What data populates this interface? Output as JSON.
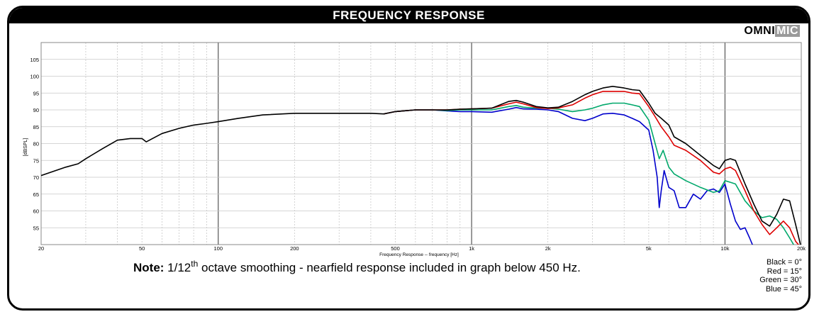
{
  "header": {
    "title": "FREQUENCY RESPONSE"
  },
  "logo": {
    "part1": "OMNI",
    "part2": "MIC"
  },
  "note": {
    "label": "Note:",
    "text_a": " 1/12",
    "sup": "th",
    "text_b": " octave smoothing - nearfield response included in graph below 450 Hz."
  },
  "legend": {
    "lines": [
      "Black = 0°",
      "Red = 15°",
      "Green = 30°",
      "Blue = 45°"
    ]
  },
  "chart_data": {
    "type": "line",
    "title": "FREQUENCY RESPONSE",
    "xlabel": "Frequency Response -- frequency [Hz]",
    "ylabel": "[dBSPL]",
    "xscale": "log",
    "xlim": [
      20,
      20000
    ],
    "ylim": [
      50,
      110
    ],
    "grid": true,
    "x_ticks": [
      {
        "v": 20,
        "label": "20"
      },
      {
        "v": 50,
        "label": "50"
      },
      {
        "v": 100,
        "label": "100"
      },
      {
        "v": 200,
        "label": "200"
      },
      {
        "v": 500,
        "label": "500"
      },
      {
        "v": 1000,
        "label": "1k"
      },
      {
        "v": 2000,
        "label": "2k"
      },
      {
        "v": 5000,
        "label": "5k"
      },
      {
        "v": 10000,
        "label": "10k"
      },
      {
        "v": 20000,
        "label": "20k"
      }
    ],
    "y_ticks": [
      55,
      60,
      65,
      70,
      75,
      80,
      85,
      90,
      95,
      100,
      105
    ],
    "series": [
      {
        "color": "#000000",
        "x": [
          20,
          25,
          28,
          30,
          35,
          40,
          45,
          50,
          52,
          55,
          60,
          70,
          80,
          90,
          100,
          120,
          150,
          200,
          300,
          400,
          450,
          500,
          600,
          700,
          800,
          900,
          1000,
          1200,
          1400,
          1500,
          1600,
          1800,
          2000,
          2200,
          2500,
          2800,
          3000,
          3300,
          3600,
          4000,
          4300,
          4600,
          5000,
          5300,
          5600,
          6000,
          6300,
          7000,
          8000,
          9000,
          9500,
          10000,
          10500,
          11000,
          12000,
          13000,
          14000,
          15000,
          16000,
          17000,
          18000,
          19000,
          20000
        ],
        "y": [
          70.5,
          73,
          74,
          75.5,
          78.5,
          81,
          81.5,
          81.5,
          80.5,
          81.5,
          83,
          84.5,
          85.5,
          86,
          86.5,
          87.5,
          88.5,
          89,
          89,
          89,
          88.8,
          89.5,
          90,
          90,
          90,
          90.2,
          90.3,
          90.5,
          92.5,
          92.8,
          92.3,
          91,
          90.6,
          90.8,
          92.5,
          94.5,
          95.5,
          96.5,
          97,
          96.5,
          96,
          95.8,
          92,
          89,
          87.5,
          85.5,
          82,
          80,
          76.5,
          73.5,
          72.5,
          75,
          75.5,
          75,
          68,
          62,
          57,
          55.5,
          59,
          63.5,
          63,
          56,
          49
        ]
      },
      {
        "color": "#dd0000",
        "x": [
          450,
          500,
          600,
          700,
          800,
          900,
          1000,
          1200,
          1400,
          1500,
          1600,
          1800,
          2000,
          2200,
          2500,
          2800,
          3000,
          3300,
          3600,
          4000,
          4300,
          4600,
          5000,
          5300,
          5600,
          6000,
          6300,
          7000,
          8000,
          9000,
          9500,
          10000,
          10500,
          11000,
          12000,
          13000,
          14000,
          15000,
          16000,
          17000,
          18000,
          19000,
          20000
        ],
        "y": [
          88.8,
          89.5,
          90,
          90,
          90,
          90.2,
          90.3,
          90.5,
          91.8,
          92.3,
          91.8,
          90.7,
          90.4,
          90.6,
          91.5,
          93.5,
          94.5,
          95.5,
          95.5,
          95.5,
          95,
          94.8,
          91,
          88,
          85,
          82,
          79.5,
          78,
          75,
          71.5,
          71,
          72.5,
          73,
          72,
          66,
          60,
          56,
          53,
          55,
          57,
          55,
          51,
          49
        ]
      },
      {
        "color": "#00a86b",
        "x": [
          450,
          500,
          600,
          700,
          800,
          900,
          1000,
          1200,
          1400,
          1500,
          1600,
          1800,
          2000,
          2200,
          2500,
          2800,
          3000,
          3300,
          3600,
          4000,
          4300,
          4600,
          5000,
          5300,
          5500,
          5700,
          6000,
          6300,
          7000,
          8000,
          9000,
          9500,
          10000,
          10500,
          11000,
          12000,
          13000,
          14000,
          15000,
          16000,
          17000,
          18000,
          19000,
          20000
        ],
        "y": [
          88.8,
          89.5,
          90,
          90,
          89.8,
          90,
          90,
          90,
          91,
          91.3,
          90.8,
          90.5,
          90.5,
          90.2,
          89.5,
          90,
          90.5,
          91.5,
          92,
          92,
          91.5,
          91,
          87,
          80,
          75.5,
          78,
          73,
          71,
          69,
          67,
          65.5,
          66,
          69,
          68.5,
          68,
          63,
          60,
          58,
          58.5,
          57.5,
          55,
          52,
          49,
          48
        ]
      },
      {
        "color": "#0000cc",
        "x": [
          450,
          500,
          600,
          700,
          800,
          900,
          1000,
          1200,
          1400,
          1500,
          1600,
          1800,
          2000,
          2200,
          2500,
          2800,
          3000,
          3300,
          3600,
          4000,
          4300,
          4600,
          5000,
          5200,
          5400,
          5500,
          5600,
          5750,
          6000,
          6300,
          6600,
          7000,
          7500,
          8000,
          8500,
          9000,
          9500,
          10000,
          10500,
          11000,
          11500,
          12000,
          12500,
          13000
        ],
        "y": [
          88.8,
          89.5,
          90,
          90,
          89.7,
          89.5,
          89.5,
          89.3,
          90.2,
          90.7,
          90.3,
          90.2,
          90,
          89.5,
          87.5,
          86.8,
          87.5,
          88.8,
          89,
          88.5,
          87.5,
          86.5,
          84,
          78,
          70,
          61,
          66,
          72,
          67,
          66,
          61,
          61,
          65,
          63.5,
          66,
          66.5,
          65.5,
          68,
          62,
          57,
          54.5,
          55,
          52,
          49
        ]
      }
    ]
  }
}
